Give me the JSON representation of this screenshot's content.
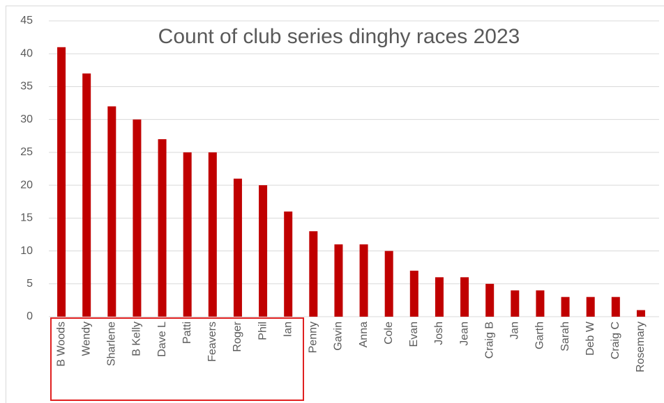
{
  "chart_data": {
    "type": "bar",
    "title": "Count of club series dinghy races 2023",
    "categories": [
      "B Woods",
      "Wendy",
      "Sharlene",
      "B Kelly",
      "Dave L",
      "Patti",
      "Feavers",
      "Roger",
      "Phil",
      "Ian",
      "Penny",
      "Gavin",
      "Anna",
      "Cole",
      "Evan",
      "Josh",
      "Jean",
      "Craig B",
      "Jan",
      "Garth",
      "Sarah",
      "Deb W",
      "Craig C",
      "Rosemary"
    ],
    "values": [
      41,
      37,
      32,
      30,
      27,
      25,
      25,
      21,
      20,
      16,
      13,
      11,
      11,
      10,
      7,
      6,
      6,
      5,
      4,
      4,
      3,
      3,
      3,
      1
    ],
    "color": "#c00000",
    "ylim": [
      0,
      45
    ],
    "yticks": [
      0,
      5,
      10,
      15,
      20,
      25,
      30,
      35,
      40,
      45
    ],
    "grid": true
  }
}
